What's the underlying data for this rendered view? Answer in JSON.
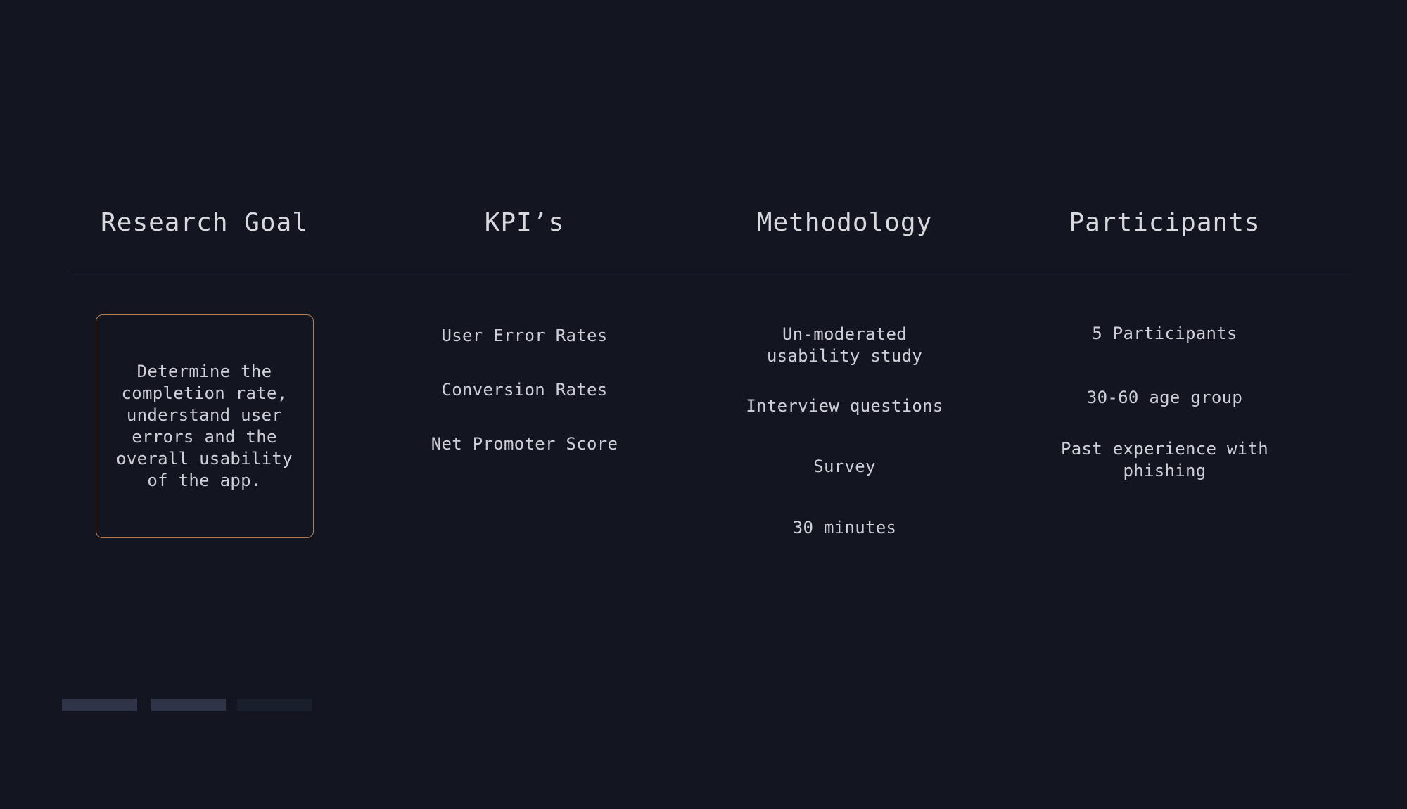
{
  "slide": {
    "columns": [
      {
        "id": "research-goal",
        "header": "Research Goal",
        "goal_text": "Determine the\ncompletion rate,\nunderstand user\nerrors and the\noverall usability\nof the app."
      },
      {
        "id": "kpis",
        "header": "KPI’s",
        "items": [
          "User Error Rates",
          "Conversion Rates",
          "Net Promoter Score"
        ]
      },
      {
        "id": "methodology",
        "header": "Methodology",
        "items": [
          "Un-moderated\nusability study",
          "Interview questions",
          "Survey",
          "30 minutes"
        ]
      },
      {
        "id": "participants",
        "header": "Participants",
        "items": [
          "5 Participants",
          "30-60 age group",
          "Past experience with\nphishing"
        ]
      }
    ],
    "pagination": {
      "bars": [
        {
          "state": "active"
        },
        {
          "state": "active"
        },
        {
          "state": "inactive"
        }
      ]
    },
    "colors": {
      "background": "#131521",
      "header_text": "#d8d9dd",
      "body_text": "#cfd0d5",
      "divider": "#3c3f51",
      "goal_box_border": "#b5804d",
      "bar_active": "#2f3449",
      "bar_inactive": "#1a1f2c"
    }
  }
}
